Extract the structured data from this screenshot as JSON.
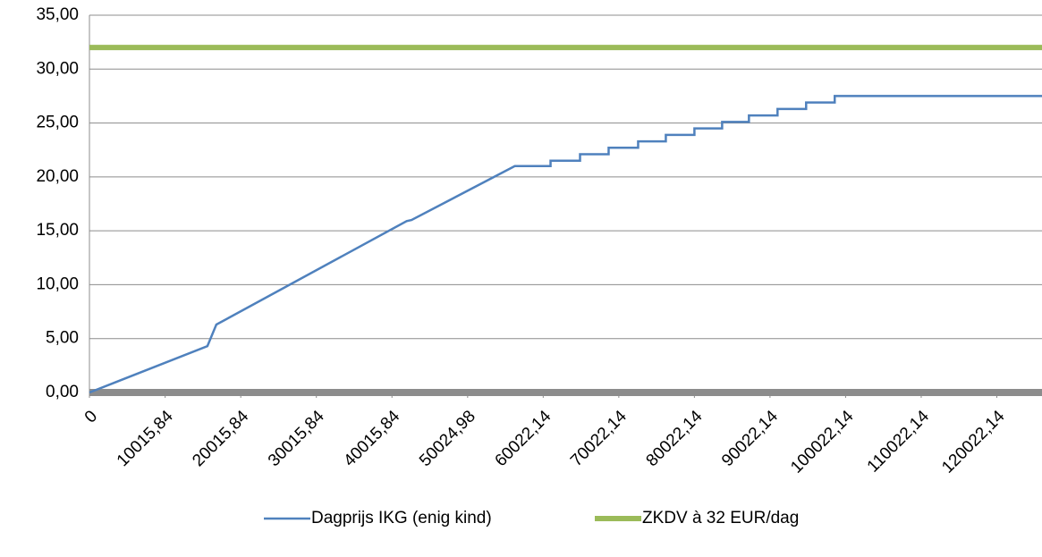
{
  "chart_data": {
    "type": "line",
    "xlim": [
      0,
      126000
    ],
    "xticks": [
      {
        "value": 0,
        "label": "0"
      },
      {
        "value": 10015.84,
        "label": "10015,84"
      },
      {
        "value": 20015.84,
        "label": "20015,84"
      },
      {
        "value": 30015.84,
        "label": "30015,84"
      },
      {
        "value": 40015.84,
        "label": "40015,84"
      },
      {
        "value": 50024.98,
        "label": "50024,98"
      },
      {
        "value": 60022.14,
        "label": "60022,14"
      },
      {
        "value": 70022.14,
        "label": "70022,14"
      },
      {
        "value": 80022.14,
        "label": "80022,14"
      },
      {
        "value": 90022.14,
        "label": "90022,14"
      },
      {
        "value": 100022.14,
        "label": "100022,14"
      },
      {
        "value": 110022.14,
        "label": "110022,14"
      },
      {
        "value": 120022.14,
        "label": "120022,14"
      }
    ],
    "ylim": [
      0,
      35
    ],
    "yticks": [
      {
        "value": 0,
        "label": "0,00"
      },
      {
        "value": 5,
        "label": "5,00"
      },
      {
        "value": 10,
        "label": "10,00"
      },
      {
        "value": 15,
        "label": "15,00"
      },
      {
        "value": 20,
        "label": "20,00"
      },
      {
        "value": 25,
        "label": "25,00"
      },
      {
        "value": 30,
        "label": "30,00"
      },
      {
        "value": 35,
        "label": "35,00"
      }
    ],
    "grid": true,
    "legend": "bottom",
    "series": [
      {
        "name": "Dagprijs IKG (enig kind)",
        "color": "#4f81bd",
        "width": 2.5,
        "x": [
          0,
          15603,
          16785,
          41962,
          42600,
          56265,
          60993,
          60993,
          64894,
          64894,
          68676,
          68676,
          72577,
          72577,
          76241,
          76241,
          80024,
          80024,
          83688,
          83688,
          87234,
          87234,
          91017,
          91017,
          94799,
          94799,
          98582,
          98582,
          126000
        ],
        "values": [
          0,
          4.3,
          6.3,
          15.9,
          16.0,
          21.0,
          21.0,
          21.5,
          21.5,
          22.1,
          22.1,
          22.7,
          22.7,
          23.3,
          23.3,
          23.9,
          23.9,
          24.5,
          24.5,
          25.1,
          25.1,
          25.7,
          25.7,
          26.3,
          26.3,
          26.9,
          26.9,
          27.5,
          27.5
        ]
      },
      {
        "name": "ZKDV à 32 EUR/dag",
        "color": "#9bbb59",
        "width": 6,
        "x": [
          0,
          126000
        ],
        "values": [
          32,
          32
        ]
      }
    ]
  }
}
